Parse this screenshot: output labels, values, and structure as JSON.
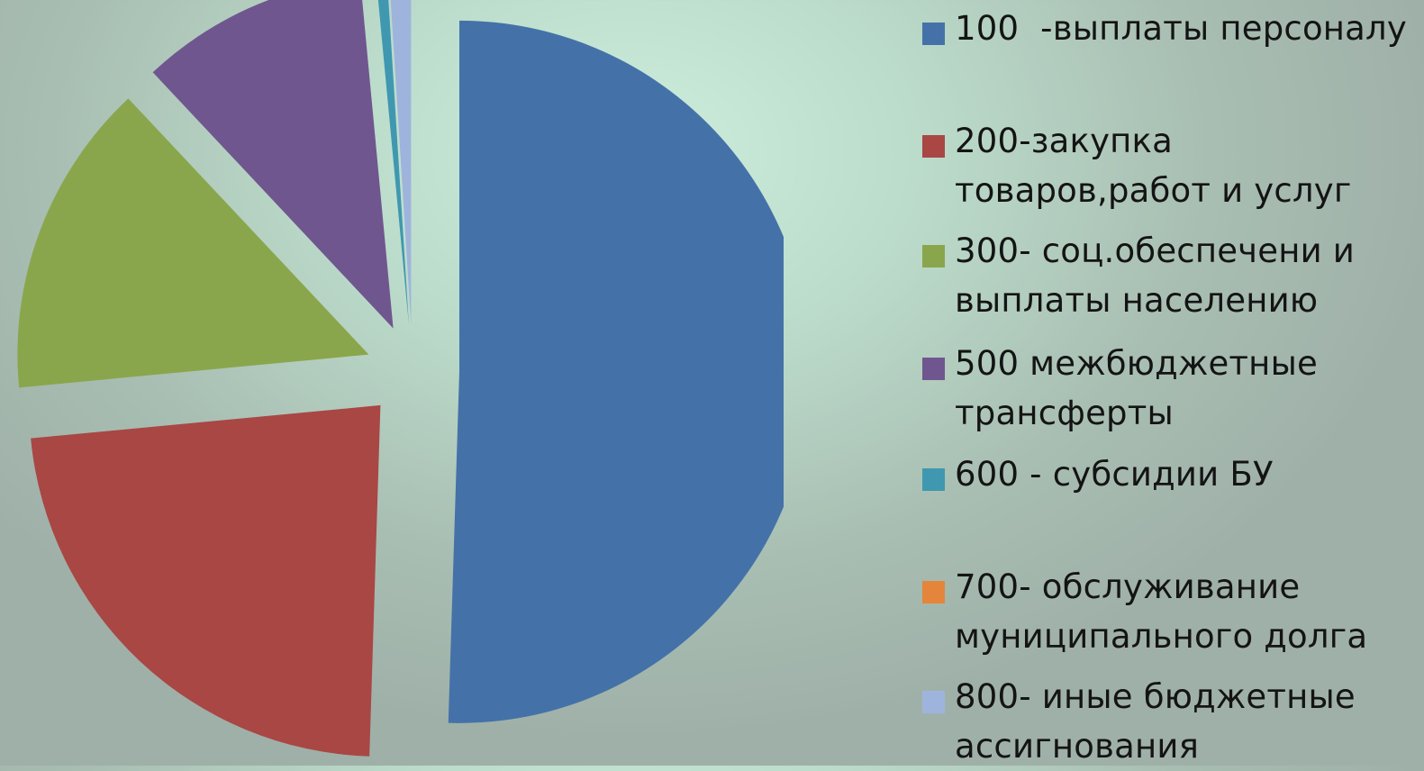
{
  "chart_data": {
    "type": "pie",
    "exploded": true,
    "start_angle_deg": 0,
    "direction": "clockwise",
    "slices": [
      {
        "label": "100  -выплаты персоналу",
        "value": 50.5,
        "color": "#4472a8"
      },
      {
        "label": "200-закупка товаров,работ и услуг",
        "value": 23.0,
        "color": "#a94744"
      },
      {
        "label": "300- соц.обеспечени и выплаты населению",
        "value": 14.5,
        "color": "#8aa64c"
      },
      {
        "label": "500 межбюджетные трансферты",
        "value": 10.5,
        "color": "#70568f"
      },
      {
        "label": "600 - субсидии БУ",
        "value": 0.5,
        "color": "#3f98b0"
      },
      {
        "label": "700- обслуживание муниципального долга",
        "value": 0.0,
        "color": "#e5853b"
      },
      {
        "label": "800- иные бюджетные ассигнования",
        "value": 1.0,
        "color": "#9fb4dc"
      }
    ],
    "legend_position": "right"
  }
}
